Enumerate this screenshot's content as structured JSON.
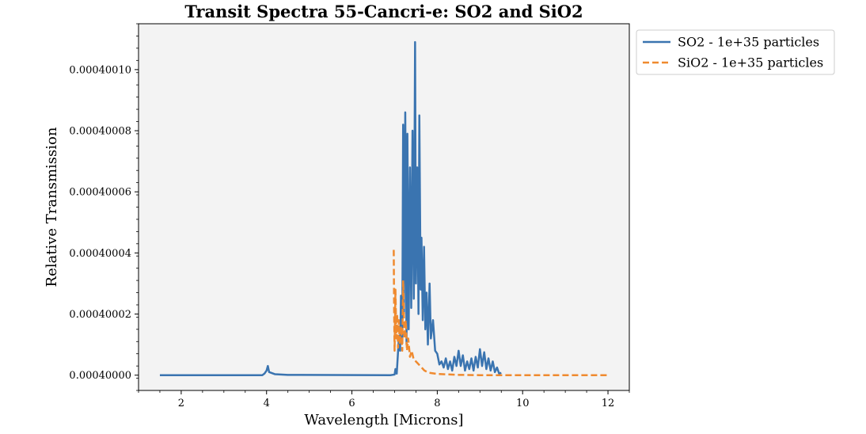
{
  "chart_data": {
    "type": "line",
    "title": "Transit Spectra 55-Cancri-e: SO2 and SiO2",
    "xlabel": "Wavelength [Microns]",
    "ylabel": "Relative Transmission",
    "xlim": [
      1.0,
      12.5
    ],
    "ylim": [
      0.399995,
      0.400115
    ],
    "x_ticks": [
      2,
      4,
      6,
      8,
      10,
      12
    ],
    "x_tick_labels": [
      "2",
      "4",
      "6",
      "8",
      "10",
      "12"
    ],
    "y_ticks": [
      0.4,
      0.40002,
      0.40004,
      0.40006,
      0.40008,
      0.4001
    ],
    "y_tick_labels": [
      "0.00040000",
      "0.00040002",
      "0.00040004",
      "0.00040006",
      "0.00040008",
      "0.00040010"
    ],
    "y_display_scale": 0.001,
    "grid": false,
    "plot_background": "#f3f3f3",
    "legend_position": "outside-top-right",
    "series": [
      {
        "name": "SO2 - 1e+35 particles",
        "color": "#3a74b0",
        "style": "solid",
        "points": [
          [
            1.5,
            0.4
          ],
          [
            3.9,
            0.4
          ],
          [
            3.95,
            0.4000005
          ],
          [
            4.0,
            0.4000015
          ],
          [
            4.03,
            0.400003
          ],
          [
            4.06,
            0.400001
          ],
          [
            4.2,
            0.4000003
          ],
          [
            4.5,
            0.4000001
          ],
          [
            6.9,
            0.4
          ],
          [
            7.0,
            0.4000002
          ],
          [
            7.02,
            0.400002
          ],
          [
            7.05,
            0.4000005
          ],
          [
            7.1,
            0.400012
          ],
          [
            7.13,
            0.400008
          ],
          [
            7.15,
            0.400026
          ],
          [
            7.18,
            0.400012
          ],
          [
            7.2,
            0.400082
          ],
          [
            7.22,
            0.40002
          ],
          [
            7.25,
            0.400086
          ],
          [
            7.28,
            0.40001
          ],
          [
            7.3,
            0.400079
          ],
          [
            7.33,
            0.400015
          ],
          [
            7.36,
            0.400068
          ],
          [
            7.39,
            0.400022
          ],
          [
            7.42,
            0.40008
          ],
          [
            7.45,
            0.400025
          ],
          [
            7.48,
            0.400109
          ],
          [
            7.5,
            0.40003
          ],
          [
            7.53,
            0.400068
          ],
          [
            7.56,
            0.40002
          ],
          [
            7.58,
            0.400085
          ],
          [
            7.61,
            0.400028
          ],
          [
            7.63,
            0.400045
          ],
          [
            7.66,
            0.400018
          ],
          [
            7.69,
            0.400042
          ],
          [
            7.72,
            0.400015
          ],
          [
            7.75,
            0.400027
          ],
          [
            7.78,
            0.40001
          ],
          [
            7.82,
            0.40003
          ],
          [
            7.85,
            0.400012
          ],
          [
            7.9,
            0.400018
          ],
          [
            7.95,
            0.400008
          ],
          [
            8.0,
            0.400007
          ],
          [
            8.05,
            0.4000035
          ],
          [
            8.1,
            0.4000045
          ],
          [
            8.15,
            0.4000025
          ],
          [
            8.2,
            0.4000055
          ],
          [
            8.25,
            0.400002
          ],
          [
            8.3,
            0.4000045
          ],
          [
            8.35,
            0.4000015
          ],
          [
            8.4,
            0.400006
          ],
          [
            8.45,
            0.400003
          ],
          [
            8.5,
            0.400008
          ],
          [
            8.55,
            0.400003
          ],
          [
            8.6,
            0.4000065
          ],
          [
            8.65,
            0.4000015
          ],
          [
            8.7,
            0.4000045
          ],
          [
            8.75,
            0.400002
          ],
          [
            8.8,
            0.4000055
          ],
          [
            8.85,
            0.4000015
          ],
          [
            8.9,
            0.400006
          ],
          [
            8.95,
            0.4000025
          ],
          [
            9.0,
            0.4000085
          ],
          [
            9.05,
            0.400003
          ],
          [
            9.1,
            0.4000075
          ],
          [
            9.15,
            0.400002
          ],
          [
            9.2,
            0.4000055
          ],
          [
            9.25,
            0.4000015
          ],
          [
            9.3,
            0.4000045
          ],
          [
            9.35,
            0.400001
          ],
          [
            9.4,
            0.4000025
          ],
          [
            9.45,
            0.4000005
          ],
          [
            9.5,
            0.4000008
          ]
        ]
      },
      {
        "name": "SiO2 - 1e+35 particles",
        "color": "#ef8a2f",
        "style": "dashed",
        "points": [
          [
            6.98,
            0.400041
          ],
          [
            6.99,
            0.40002
          ],
          [
            7.0,
            0.400008
          ],
          [
            7.02,
            0.400028
          ],
          [
            7.04,
            0.400012
          ],
          [
            7.06,
            0.40002
          ],
          [
            7.08,
            0.400009
          ],
          [
            7.1,
            0.400018
          ],
          [
            7.12,
            0.40001
          ],
          [
            7.15,
            0.400016
          ],
          [
            7.18,
            0.400008
          ],
          [
            7.2,
            0.400031
          ],
          [
            7.23,
            0.400012
          ],
          [
            7.26,
            0.400018
          ],
          [
            7.29,
            0.400008
          ],
          [
            7.32,
            0.400012
          ],
          [
            7.36,
            0.400006
          ],
          [
            7.4,
            0.400008
          ],
          [
            7.45,
            0.400005
          ],
          [
            7.5,
            0.4000045
          ],
          [
            7.6,
            0.400003
          ],
          [
            7.7,
            0.4000015
          ],
          [
            7.8,
            0.4000008
          ],
          [
            8.0,
            0.4000004
          ],
          [
            8.5,
            0.4000001
          ],
          [
            9.0,
            0.4
          ],
          [
            12.0,
            0.4
          ]
        ]
      }
    ]
  }
}
